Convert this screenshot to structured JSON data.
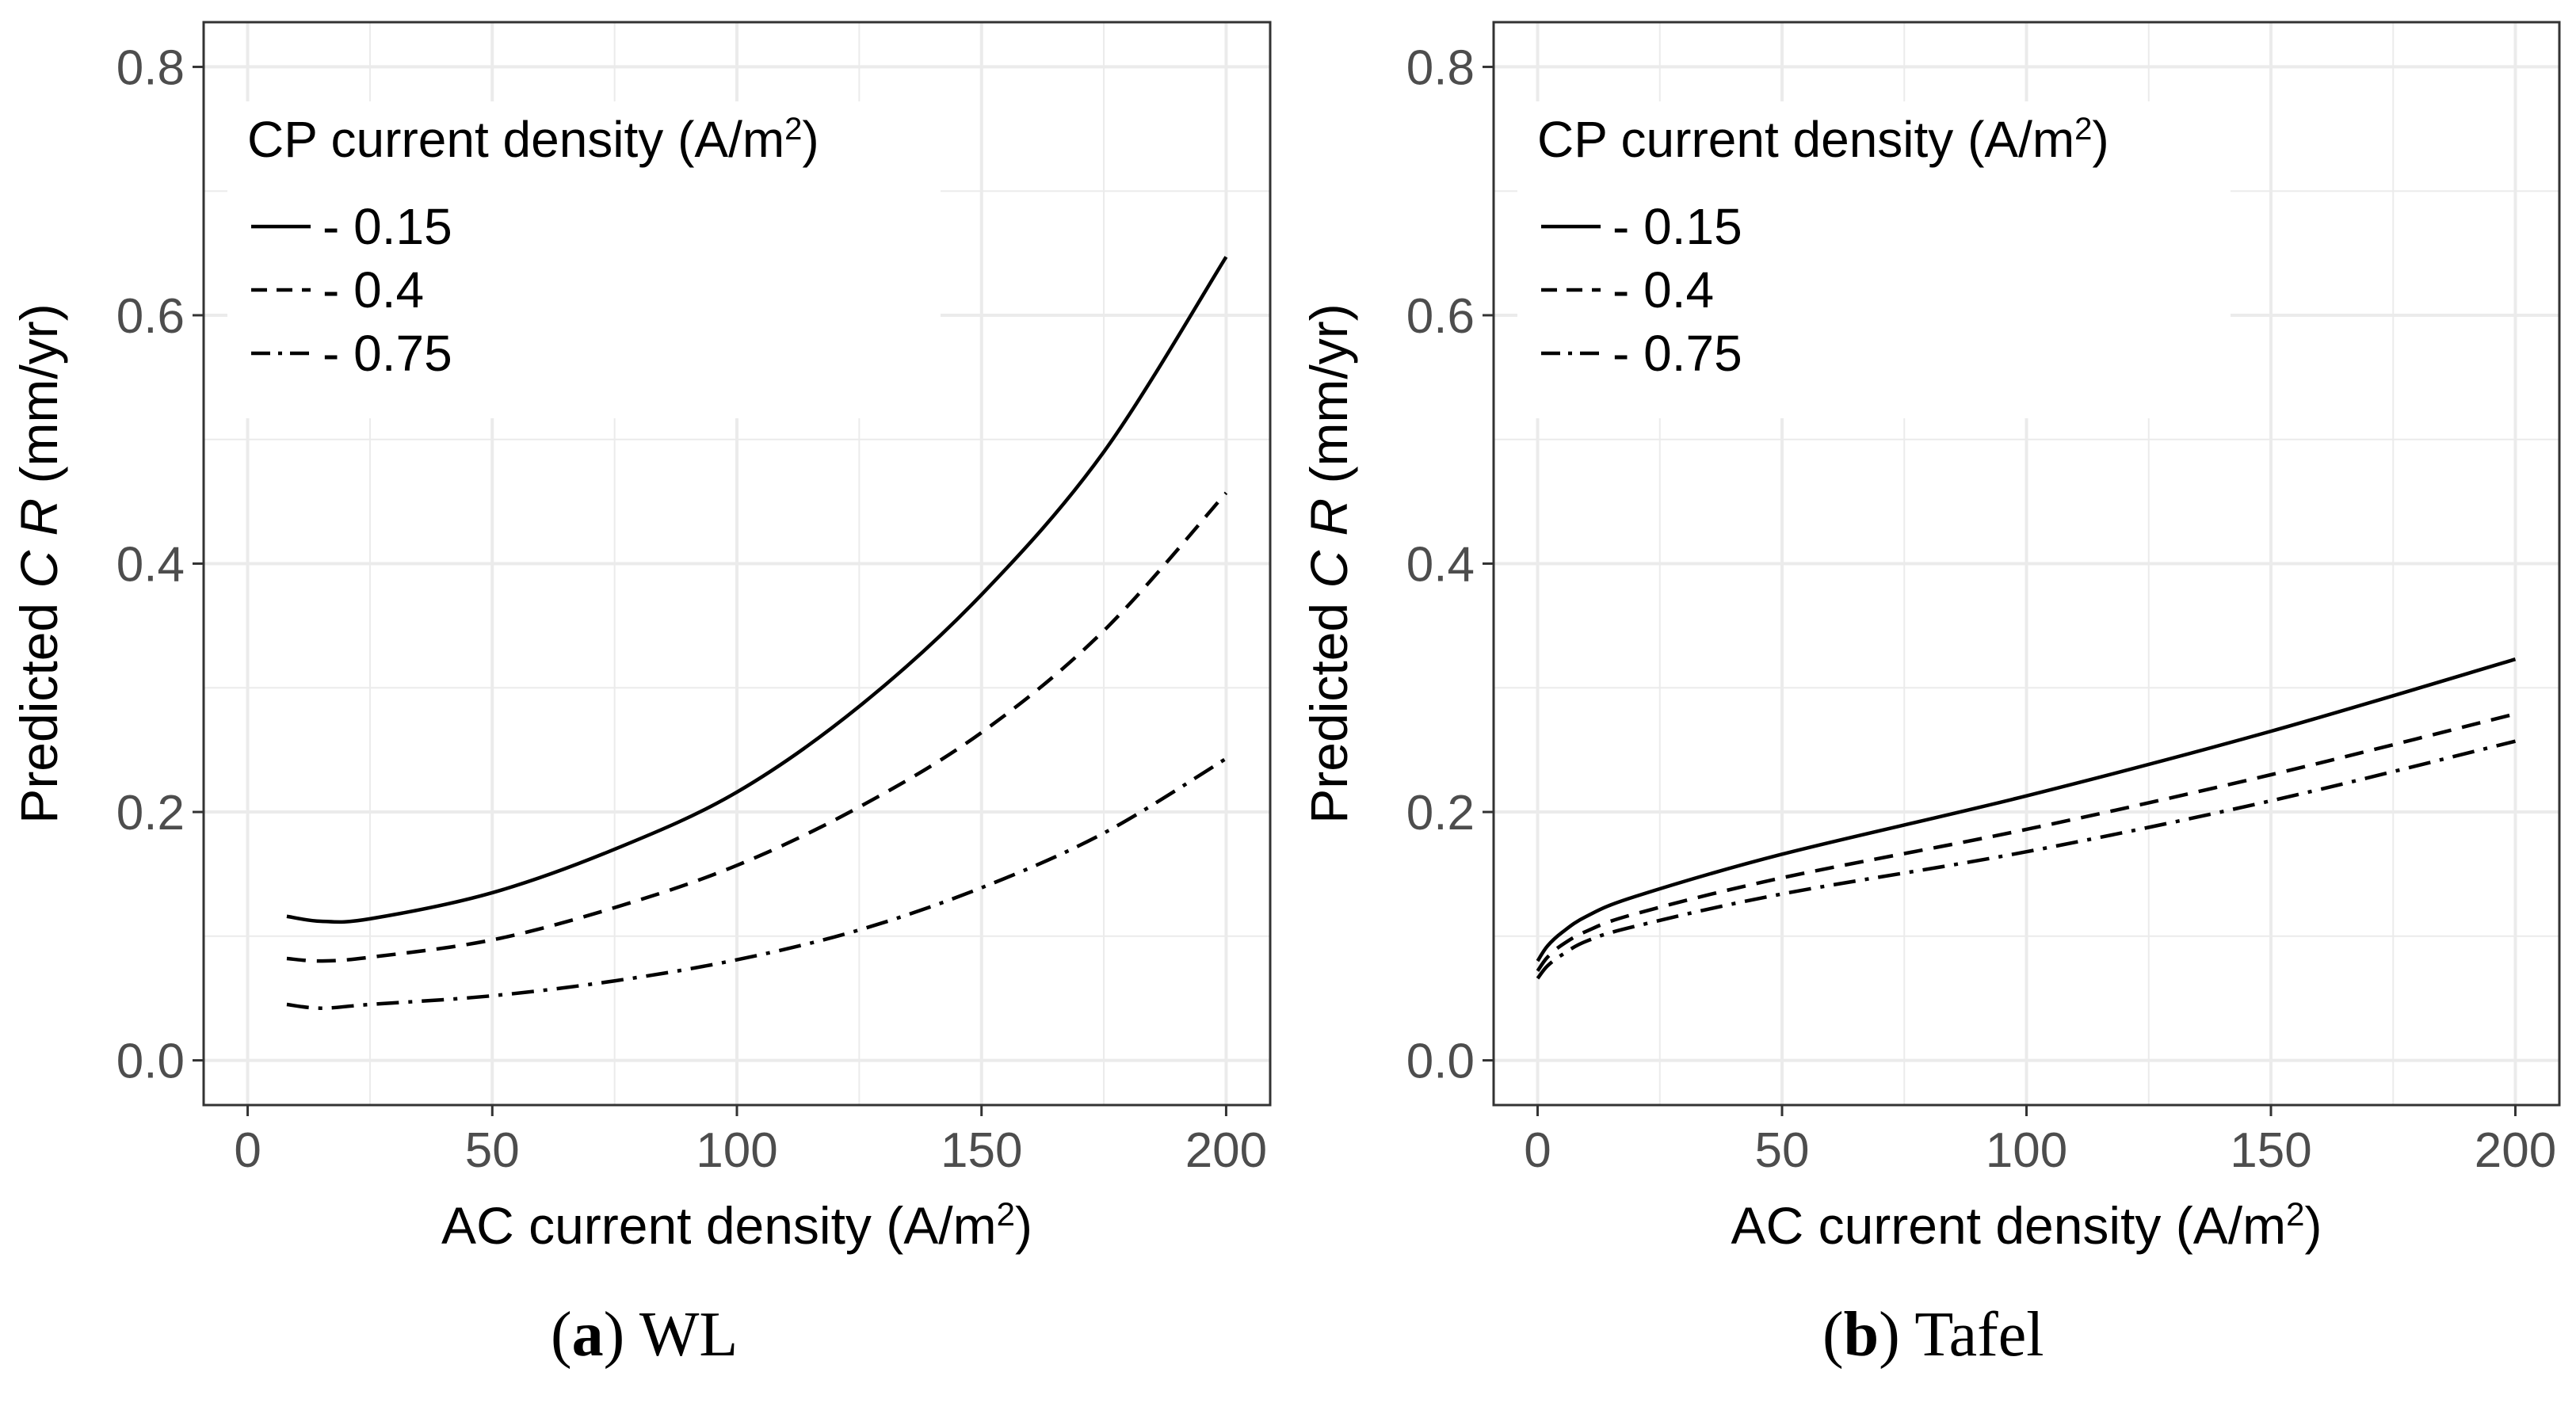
{
  "chart_data": [
    {
      "type": "line",
      "panel": "a",
      "caption_letter": "a",
      "caption_text": "WL",
      "title": "",
      "xlabel": "AC current density (A/m²)",
      "ylabel": "Predicted CR (mm/yr)",
      "xlim": [
        0,
        200
      ],
      "ylim": [
        0,
        0.8
      ],
      "x_ticks": [
        0,
        50,
        100,
        150,
        200
      ],
      "x_tick_labels": [
        "0",
        "50",
        "100",
        "150",
        "200"
      ],
      "y_ticks": [
        0,
        0.2,
        0.4,
        0.6,
        0.8
      ],
      "y_tick_labels": [
        "0.0",
        "0.2",
        "0.4",
        "0.6",
        "0.8"
      ],
      "grid": true,
      "legend": {
        "title": "CP current density (A/m²)",
        "position": "top-left"
      },
      "series": [
        {
          "name": "- 0.15",
          "dash": "solid",
          "x": [
            8,
            15,
            25,
            50,
            75,
            100,
            125,
            150,
            175,
            200
          ],
          "y": [
            0.116,
            0.112,
            0.114,
            0.135,
            0.17,
            0.216,
            0.285,
            0.375,
            0.49,
            0.647
          ]
        },
        {
          "name": "- 0.4",
          "dash": "dashed",
          "x": [
            8,
            15,
            25,
            50,
            75,
            100,
            125,
            150,
            175,
            200
          ],
          "y": [
            0.082,
            0.08,
            0.083,
            0.097,
            0.123,
            0.157,
            0.204,
            0.264,
            0.346,
            0.457
          ]
        },
        {
          "name": "- 0.75",
          "dash": "dotdash",
          "x": [
            8,
            15,
            25,
            50,
            75,
            100,
            125,
            150,
            175,
            200
          ],
          "y": [
            0.045,
            0.042,
            0.045,
            0.052,
            0.064,
            0.081,
            0.105,
            0.139,
            0.183,
            0.243
          ]
        }
      ]
    },
    {
      "type": "line",
      "panel": "b",
      "caption_letter": "b",
      "caption_text": "Tafel",
      "title": "",
      "xlabel": "AC current density (A/m²)",
      "ylabel": "Predicted CR (mm/yr)",
      "xlim": [
        0,
        200
      ],
      "ylim": [
        0,
        0.8
      ],
      "x_ticks": [
        0,
        50,
        100,
        150,
        200
      ],
      "x_tick_labels": [
        "0",
        "50",
        "100",
        "150",
        "200"
      ],
      "y_ticks": [
        0,
        0.2,
        0.4,
        0.6,
        0.8
      ],
      "y_tick_labels": [
        "0.0",
        "0.2",
        "0.4",
        "0.6",
        "0.8"
      ],
      "grid": true,
      "legend": {
        "title": "CP current density (A/m²)",
        "position": "top-left"
      },
      "series": [
        {
          "name": "- 0.15",
          "dash": "solid",
          "x": [
            0,
            2,
            5,
            10,
            20,
            50,
            100,
            150,
            200
          ],
          "y": [
            0.08,
            0.092,
            0.103,
            0.116,
            0.132,
            0.166,
            0.213,
            0.265,
            0.323
          ]
        },
        {
          "name": "- 0.4",
          "dash": "dashed",
          "x": [
            0,
            2,
            5,
            10,
            20,
            50,
            100,
            150,
            200
          ],
          "y": [
            0.072,
            0.083,
            0.093,
            0.104,
            0.118,
            0.147,
            0.186,
            0.23,
            0.279
          ]
        },
        {
          "name": "- 0.75",
          "dash": "dotdash",
          "x": [
            0,
            2,
            5,
            10,
            20,
            50,
            100,
            150,
            200
          ],
          "y": [
            0.066,
            0.076,
            0.085,
            0.096,
            0.108,
            0.134,
            0.168,
            0.209,
            0.257
          ]
        }
      ]
    }
  ],
  "styles": {
    "line_color": "#000000",
    "grid_color": "#ebebeb",
    "axis_text_color": "#4d4d4d",
    "panel_border_color": "#333333"
  }
}
